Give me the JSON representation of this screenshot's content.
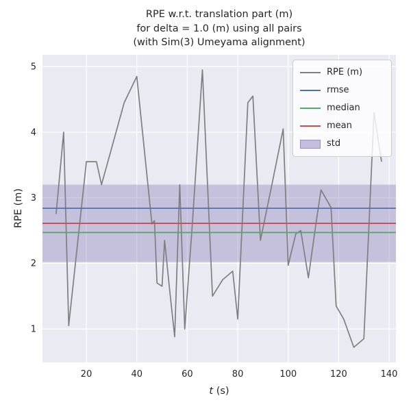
{
  "chart_data": {
    "type": "line",
    "title": "RPE w.r.t. translation part (m)\nfor delta = 1.0 (m) using all pairs\n(with Sim(3) Umeyama alignment)",
    "xlabel": "t (s)",
    "ylabel": "RPE (m)",
    "xlim": [
      2.6,
      142.7
    ],
    "ylim": [
      0.49,
      5.18
    ],
    "xticks": [
      20,
      40,
      60,
      80,
      100,
      120,
      140
    ],
    "yticks": [
      1,
      2,
      3,
      4,
      5
    ],
    "grid": true,
    "background": "#eaeaf2",
    "grid_color": "#ffffff",
    "tick_label_color": "#262626",
    "legend_position": "upper right",
    "series": [
      {
        "name": "RPE (m)",
        "type": "line",
        "color": "#7f7f7f",
        "x": [
          8,
          11,
          13,
          20,
          24,
          26,
          35,
          40,
          46,
          47,
          48,
          50,
          51,
          53,
          55,
          57,
          59,
          62,
          66,
          70,
          74,
          78,
          80,
          84,
          86,
          89,
          93,
          98,
          100,
          103,
          105,
          108,
          111,
          113,
          117,
          119,
          122,
          126,
          130,
          134,
          137
        ],
        "y": [
          2.75,
          4.0,
          1.05,
          3.55,
          3.55,
          3.2,
          4.45,
          4.85,
          2.6,
          2.65,
          1.7,
          1.65,
          2.35,
          1.6,
          0.88,
          3.2,
          1.0,
          2.6,
          4.95,
          1.5,
          1.75,
          1.88,
          1.15,
          4.45,
          4.55,
          2.35,
          3.1,
          4.05,
          1.97,
          2.45,
          2.5,
          1.78,
          2.6,
          3.12,
          2.85,
          1.35,
          1.15,
          0.72,
          0.85,
          4.3,
          3.55
        ]
      }
    ],
    "stat_lines": [
      {
        "name": "rmse",
        "value": 2.84,
        "color": "#4c72b0"
      },
      {
        "name": "median",
        "value": 2.47,
        "color": "#55a868"
      },
      {
        "name": "mean",
        "value": 2.61,
        "color": "#c44e52"
      }
    ],
    "band": {
      "name": "std",
      "low": 2.02,
      "high": 3.2,
      "color": "#8172b2",
      "alpha": 0.35
    },
    "legend": [
      {
        "label": "RPE (m)",
        "swatch": "line",
        "color": "#7f7f7f"
      },
      {
        "label": "rmse",
        "swatch": "line",
        "color": "#4c72b0"
      },
      {
        "label": "median",
        "swatch": "line",
        "color": "#55a868"
      },
      {
        "label": "mean",
        "swatch": "line",
        "color": "#c44e52"
      },
      {
        "label": "std",
        "swatch": "patch",
        "color": "#8172b2"
      }
    ]
  }
}
